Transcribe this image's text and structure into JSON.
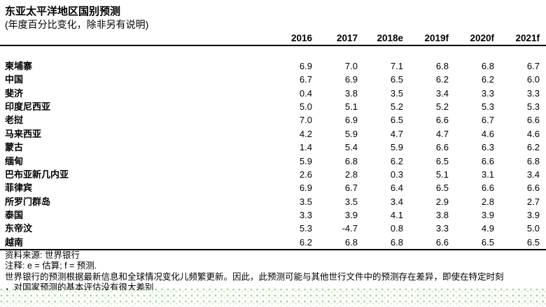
{
  "title": "东亚太平洋地区国别预测",
  "subtitle": "(年度百分比变化，除非另有说明)",
  "table": {
    "columns": [
      "2016",
      "2017",
      "2018e",
      "2019f",
      "2020f",
      "2021f"
    ],
    "rows": [
      [
        "柬埔寨",
        "6.9",
        "7.0",
        "7.1",
        "6.8",
        "6.8",
        "6.7"
      ],
      [
        "中国",
        "6.7",
        "6.9",
        "6.5",
        "6.2",
        "6.2",
        "6.0"
      ],
      [
        "斐济",
        "0.4",
        "3.8",
        "3.5",
        "3.4",
        "3.3",
        "3.3"
      ],
      [
        "印度尼西亚",
        "5.0",
        "5.1",
        "5.2",
        "5.2",
        "5.3",
        "5.3"
      ],
      [
        "老挝",
        "7.0",
        "6.9",
        "6.5",
        "6.6",
        "6.7",
        "6.6"
      ],
      [
        "马来西亚",
        "4.2",
        "5.9",
        "4.7",
        "4.7",
        "4.6",
        "4.6"
      ],
      [
        "蒙古",
        "1.4",
        "5.4",
        "5.9",
        "6.6",
        "6.3",
        "6.2"
      ],
      [
        "缅甸",
        "5.9",
        "6.8",
        "6.2",
        "6.5",
        "6.6",
        "6.8"
      ],
      [
        "巴布亚新几内亚",
        "2.6",
        "2.8",
        "0.3",
        "5.1",
        "3.1",
        "3.4"
      ],
      [
        "菲律宾",
        "6.9",
        "6.7",
        "6.4",
        "6.5",
        "6.6",
        "6.6"
      ],
      [
        "所罗门群岛",
        "3.5",
        "3.5",
        "3.4",
        "2.9",
        "2.8",
        "2.7"
      ],
      [
        "泰国",
        "3.3",
        "3.9",
        "4.1",
        "3.8",
        "3.9",
        "3.9"
      ],
      [
        "东帝汶",
        "5.3",
        "-4.7",
        "0.8",
        "3.3",
        "4.9",
        "5.0"
      ],
      [
        "越南",
        "6.2",
        "6.8",
        "6.8",
        "6.6",
        "6.5",
        "6.5"
      ]
    ]
  },
  "footer": {
    "source": "资料来源: 世界银行",
    "notes": "注释: e = 估算; f = 预测.",
    "disclaimer": "世界银行的预测根据最新信息和全球情况变化儿频繁更新。因此，此预测可能与其他世行文件中的预测存在差异，即使在特定时刻",
    "clipped_line": "，对国家预测的基本评估没有很大差别"
  },
  "colors": {
    "rule": "#000000",
    "dot_green": "#a6d38f"
  }
}
